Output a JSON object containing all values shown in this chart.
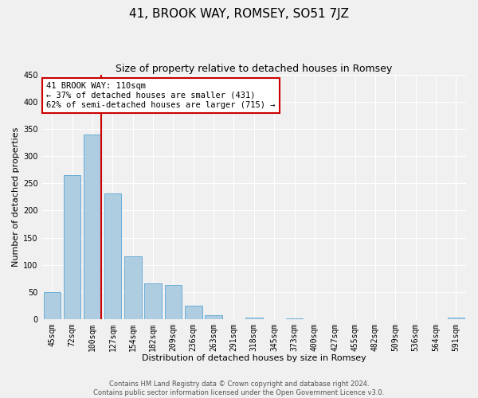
{
  "title": "41, BROOK WAY, ROMSEY, SO51 7JZ",
  "subtitle": "Size of property relative to detached houses in Romsey",
  "xlabel": "Distribution of detached houses by size in Romsey",
  "ylabel": "Number of detached properties",
  "footer_line1": "Contains HM Land Registry data © Crown copyright and database right 2024.",
  "footer_line2": "Contains public sector information licensed under the Open Government Licence v3.0.",
  "categories": [
    "45sqm",
    "72sqm",
    "100sqm",
    "127sqm",
    "154sqm",
    "182sqm",
    "209sqm",
    "236sqm",
    "263sqm",
    "291sqm",
    "318sqm",
    "345sqm",
    "373sqm",
    "400sqm",
    "427sqm",
    "455sqm",
    "482sqm",
    "509sqm",
    "536sqm",
    "564sqm",
    "591sqm"
  ],
  "values": [
    50,
    265,
    340,
    232,
    115,
    65,
    62,
    25,
    7,
    0,
    2,
    0,
    1,
    0,
    0,
    0,
    0,
    0,
    0,
    0,
    2
  ],
  "bar_color": "#aecde1",
  "bar_edge_color": "#6aaed6",
  "vline_color": "#cc0000",
  "vline_pos": 2.425,
  "annotation_title": "41 BROOK WAY: 110sqm",
  "annotation_line1": "← 37% of detached houses are smaller (431)",
  "annotation_line2": "62% of semi-detached houses are larger (715) →",
  "annotation_box_color": "#cc0000",
  "ylim": [
    0,
    450
  ],
  "yticks": [
    0,
    50,
    100,
    150,
    200,
    250,
    300,
    350,
    400,
    450
  ],
  "background_color": "#f0f0f0",
  "grid_color": "#ffffff",
  "title_fontsize": 11,
  "subtitle_fontsize": 9,
  "axis_label_fontsize": 8,
  "tick_fontsize": 7,
  "annotation_fontsize": 7.5,
  "footer_fontsize": 6
}
